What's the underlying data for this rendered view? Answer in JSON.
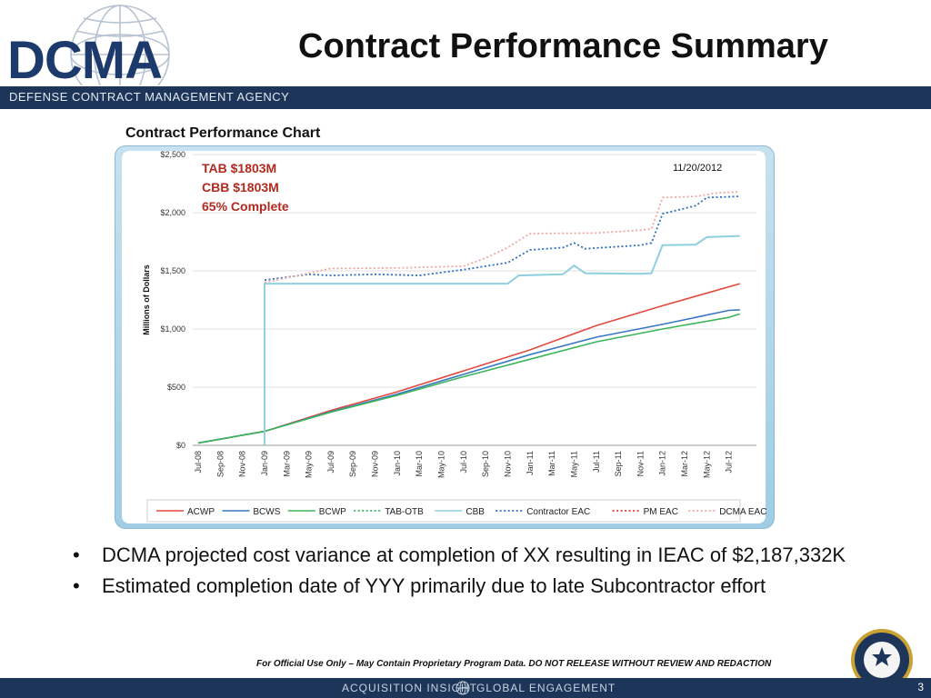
{
  "header": {
    "logo_text": "DCMA",
    "agency_name": "DEFENSE CONTRACT MANAGEMENT AGENCY",
    "title": "Contract Performance Summary"
  },
  "chart_heading": "Contract Performance Chart",
  "chart_data": {
    "type": "line",
    "ylabel": "Millions of Dollars",
    "ylim": [
      0,
      2500
    ],
    "yticks": [
      "$0",
      "$500",
      "$1,000",
      "$1,500",
      "$2,000",
      "$2,500"
    ],
    "xticks": [
      "Jul-08",
      "Sep-08",
      "Nov-08",
      "Jan-09",
      "Mar-09",
      "May-09",
      "Jul-09",
      "Sep-09",
      "Nov-09",
      "Jan-10",
      "Mar-10",
      "May-10",
      "Jul-10",
      "Sep-10",
      "Nov-10",
      "Jan-11",
      "Mar-11",
      "May-11",
      "Jul-11",
      "Sep-11",
      "Nov-11",
      "Jan-12",
      "Mar-12",
      "May-12",
      "Jul-12"
    ],
    "date_annotation": "11/20/2012",
    "annotations": [
      "TAB $1803M",
      "CBB $1803M",
      "65% Complete"
    ],
    "legend_position": "bottom",
    "series": [
      {
        "name": "ACWP",
        "color": "#e04a3f",
        "style": "solid",
        "points": [
          [
            "Jul-08",
            20
          ],
          [
            "Jan-09",
            120
          ],
          [
            "Jul-09",
            300
          ],
          [
            "Jan-10",
            460
          ],
          [
            "Jul-10",
            640
          ],
          [
            "Jan-11",
            820
          ],
          [
            "Jul-11",
            1030
          ],
          [
            "Jan-12",
            1200
          ],
          [
            "Aug-12",
            1390
          ]
        ]
      },
      {
        "name": "BCWS",
        "color": "#3a78c2",
        "style": "solid",
        "points": [
          [
            "Jul-08",
            20
          ],
          [
            "Jan-09",
            120
          ],
          [
            "Jul-09",
            290
          ],
          [
            "Jan-10",
            440
          ],
          [
            "Jul-10",
            610
          ],
          [
            "Jan-11",
            780
          ],
          [
            "Jul-11",
            930
          ],
          [
            "Jan-12",
            1040
          ],
          [
            "Jul-12",
            1160
          ],
          [
            "Aug-12",
            1165
          ]
        ]
      },
      {
        "name": "BCWP",
        "color": "#3db55a",
        "style": "solid",
        "points": [
          [
            "Jul-08",
            20
          ],
          [
            "Jan-09",
            120
          ],
          [
            "Jul-09",
            285
          ],
          [
            "Jan-10",
            430
          ],
          [
            "Jul-10",
            590
          ],
          [
            "Jan-11",
            740
          ],
          [
            "Jul-11",
            890
          ],
          [
            "Jan-12",
            1000
          ],
          [
            "Jul-12",
            1100
          ],
          [
            "Aug-12",
            1130
          ]
        ]
      },
      {
        "name": "TAB-OTB",
        "color": "#3db55a",
        "style": "dotted",
        "points": []
      },
      {
        "name": "CBB",
        "color": "#8ecfe0",
        "style": "solid",
        "points": [
          [
            "Jan-09",
            0
          ],
          [
            "Jan-09",
            1390
          ],
          [
            "Nov-10",
            1390
          ],
          [
            "Dec-10",
            1460
          ],
          [
            "Apr-11",
            1470
          ],
          [
            "May-11",
            1545
          ],
          [
            "Jun-11",
            1480
          ],
          [
            "Nov-11",
            1475
          ],
          [
            "Dec-11",
            1480
          ],
          [
            "Jan-12",
            1720
          ],
          [
            "Apr-12",
            1725
          ],
          [
            "May-12",
            1790
          ],
          [
            "Aug-12",
            1800
          ]
        ]
      },
      {
        "name": "Contractor EAC",
        "color": "#2c6fc0",
        "style": "dotted",
        "points": [
          [
            "Jan-09",
            1420
          ],
          [
            "May-09",
            1470
          ],
          [
            "Jul-09",
            1460
          ],
          [
            "Nov-09",
            1470
          ],
          [
            "Mar-10",
            1460
          ],
          [
            "Jul-10",
            1510
          ],
          [
            "Nov-10",
            1570
          ],
          [
            "Jan-11",
            1680
          ],
          [
            "Apr-11",
            1700
          ],
          [
            "May-11",
            1740
          ],
          [
            "Jun-11",
            1690
          ],
          [
            "Nov-11",
            1720
          ],
          [
            "Dec-11",
            1740
          ],
          [
            "Jan-12",
            1990
          ],
          [
            "Apr-12",
            2060
          ],
          [
            "May-12",
            2130
          ],
          [
            "Aug-12",
            2140
          ]
        ]
      },
      {
        "name": "PM EAC",
        "color": "#d93a3a",
        "style": "dotted",
        "points": []
      },
      {
        "name": "DCMA EAC",
        "color": "#f0a7a0",
        "style": "dotted",
        "points": [
          [
            "Jan-09",
            1400
          ],
          [
            "Jul-09",
            1520
          ],
          [
            "Jan-10",
            1525
          ],
          [
            "Jul-10",
            1540
          ],
          [
            "Sep-10",
            1610
          ],
          [
            "Nov-10",
            1700
          ],
          [
            "Jan-11",
            1820
          ],
          [
            "Jul-11",
            1825
          ],
          [
            "Nov-11",
            1850
          ],
          [
            "Dec-11",
            1860
          ],
          [
            "Jan-12",
            2130
          ],
          [
            "Apr-12",
            2140
          ],
          [
            "Jun-12",
            2170
          ],
          [
            "Aug-12",
            2180
          ]
        ]
      }
    ]
  },
  "bullets": [
    "DCMA projected cost variance at completion of XX resulting in IEAC of $2,187,332K",
    "Estimated completion date of YYY primarily due to late Subcontractor effort"
  ],
  "footer": {
    "note": "For Official Use Only – May Contain Proprietary Program Data. DO NOT RELEASE WITHOUT REVIEW AND REDACTION",
    "tagline_left": "ACQUISITION INSIGHT",
    "tagline_right": "GLOBAL ENGAGEMENT",
    "page_number": "3"
  },
  "colors": {
    "navy": "#1c3558",
    "annotation_red": "#b02a20"
  }
}
